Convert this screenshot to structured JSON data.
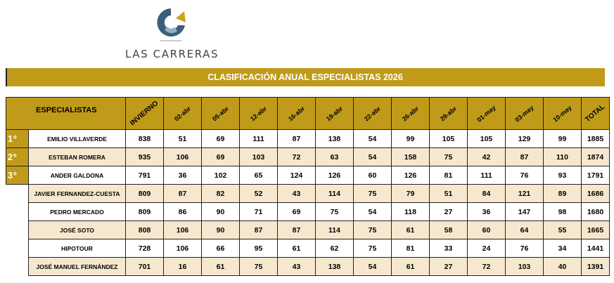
{
  "logo": {
    "text": "LAS CARRERAS"
  },
  "title": "CLASIFICACIÓN ANUAL ESPECIALISTAS 2026",
  "columns": {
    "specialists": "ESPECIALISTAS",
    "winter": "INVIERNO",
    "dates": [
      "02-abr",
      "05-abr",
      "12-abr",
      "16-abr",
      "19-abr",
      "22-abr",
      "26-abr",
      "29-abr",
      "01-may",
      "03-may",
      "10-may"
    ],
    "total": "TOTAL"
  },
  "rows": [
    {
      "rank": "1º",
      "name": "EMILIO VILLAVERDE",
      "winter": "838",
      "scores": [
        "51",
        "69",
        "111",
        "87",
        "138",
        "54",
        "99",
        "105",
        "105",
        "129",
        "99"
      ],
      "total": "1885"
    },
    {
      "rank": "2º",
      "name": "ESTEBAN ROMERA",
      "winter": "935",
      "scores": [
        "106",
        "69",
        "103",
        "72",
        "63",
        "54",
        "158",
        "75",
        "42",
        "87",
        "110"
      ],
      "total": "1874"
    },
    {
      "rank": "3º",
      "name": "ANDER GALDONA",
      "winter": "791",
      "scores": [
        "36",
        "102",
        "65",
        "124",
        "126",
        "60",
        "126",
        "81",
        "111",
        "76",
        "93"
      ],
      "total": "1791"
    },
    {
      "rank": "",
      "name": "JAVIER FERNANDEZ-CUESTA",
      "winter": "809",
      "scores": [
        "87",
        "82",
        "52",
        "43",
        "114",
        "75",
        "79",
        "51",
        "84",
        "121",
        "89"
      ],
      "total": "1686"
    },
    {
      "rank": "",
      "name": "PEDRO MERCADO",
      "winter": "809",
      "scores": [
        "86",
        "90",
        "71",
        "69",
        "75",
        "54",
        "118",
        "27",
        "36",
        "147",
        "98"
      ],
      "total": "1680"
    },
    {
      "rank": "",
      "name": "JOSÉ SOTO",
      "winter": "808",
      "scores": [
        "106",
        "90",
        "87",
        "87",
        "114",
        "75",
        "61",
        "58",
        "60",
        "64",
        "55"
      ],
      "total": "1665"
    },
    {
      "rank": "",
      "name": "HIPOTOUR",
      "winter": "728",
      "scores": [
        "106",
        "66",
        "95",
        "61",
        "62",
        "75",
        "81",
        "33",
        "24",
        "76",
        "34"
      ],
      "total": "1441"
    },
    {
      "rank": "",
      "name": "JOSÉ MANUEL FERNÁNDEZ",
      "winter": "701",
      "scores": [
        "16",
        "61",
        "75",
        "43",
        "138",
        "54",
        "61",
        "27",
        "72",
        "103",
        "40"
      ],
      "total": "1391"
    }
  ]
}
